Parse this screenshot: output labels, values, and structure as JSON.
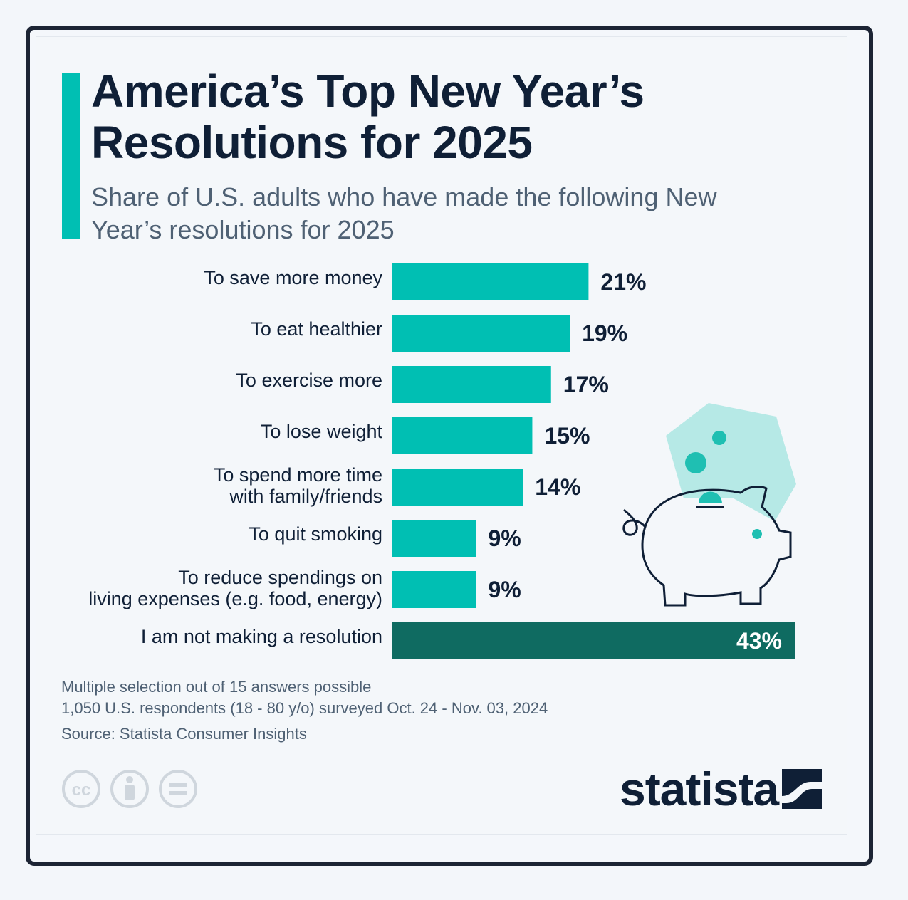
{
  "header": {
    "title": "America’s Top New Year’s Resolutions for 2025",
    "subtitle": "Share of U.S. adults who have made the following New Year’s resolutions for 2025"
  },
  "colors": {
    "accent": "#00bfb3",
    "highlight_bar": "#0f6b61",
    "text_dark": "#0f1f36",
    "text_muted": "#4f6174"
  },
  "chart_data": {
    "type": "bar",
    "orientation": "horizontal",
    "categories": [
      "To save more money",
      "To eat healthier",
      "To exercise more",
      "To lose weight",
      "To spend more time with family/friends",
      "To quit smoking",
      "To reduce spendings on living expenses (e.g. food, energy)",
      "I am not making a resolution"
    ],
    "category_lines": [
      [
        "To save more money"
      ],
      [
        "To eat healthier"
      ],
      [
        "To exercise more"
      ],
      [
        "To lose weight"
      ],
      [
        "To spend more time",
        "with family/friends"
      ],
      [
        "To quit smoking"
      ],
      [
        "To reduce spendings on",
        "living expenses (e.g. food, energy)"
      ],
      [
        "I am not making a resolution"
      ]
    ],
    "values": [
      21,
      19,
      17,
      15,
      14,
      9,
      9,
      43
    ],
    "value_labels": [
      "21%",
      "19%",
      "17%",
      "15%",
      "14%",
      "9%",
      "9%",
      "43%"
    ],
    "highlighted_index": 7,
    "unit": "%",
    "xlim": [
      0,
      43
    ],
    "grid": false,
    "legend": "none"
  },
  "footer": {
    "note_1": "Multiple selection out of 15 answers possible",
    "note_2": "1,050 U.S. respondents (18 - 80 y/o) surveyed Oct. 24 - Nov. 03, 2024",
    "source": "Source: Statista Consumer Insights",
    "brand": "statista",
    "license_icons": [
      "creative-commons-icon",
      "attribution-icon",
      "no-derivatives-icon"
    ]
  },
  "illustration": "piggy-bank-icon"
}
